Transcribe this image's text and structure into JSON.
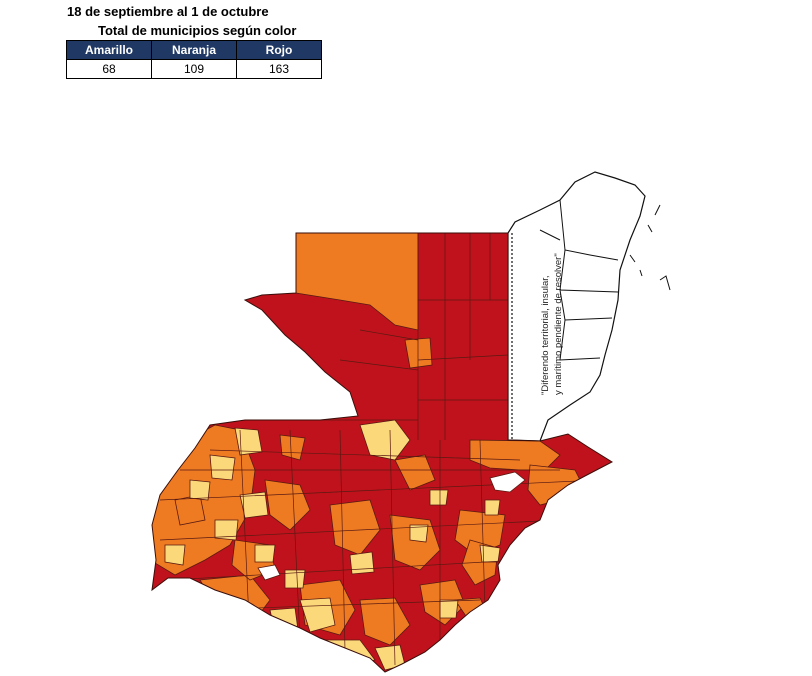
{
  "header": {
    "title": "18 de septiembre al 1 de octubre",
    "subtitle": "Total de municipios según color"
  },
  "summary": {
    "columns": [
      "Amarillo",
      "Naranja",
      "Rojo"
    ],
    "values": [
      "68",
      "109",
      "163"
    ]
  },
  "map": {
    "annotation_line1": "\"Diferendo territorial, insular,",
    "annotation_line2": "y marítimo pendiente de resolver\"",
    "colors": {
      "amarillo": "#fbd87a",
      "naranja": "#ee7b22",
      "rojo": "#c0121c",
      "border": "#5a1a12",
      "header": "#1f3864"
    }
  }
}
